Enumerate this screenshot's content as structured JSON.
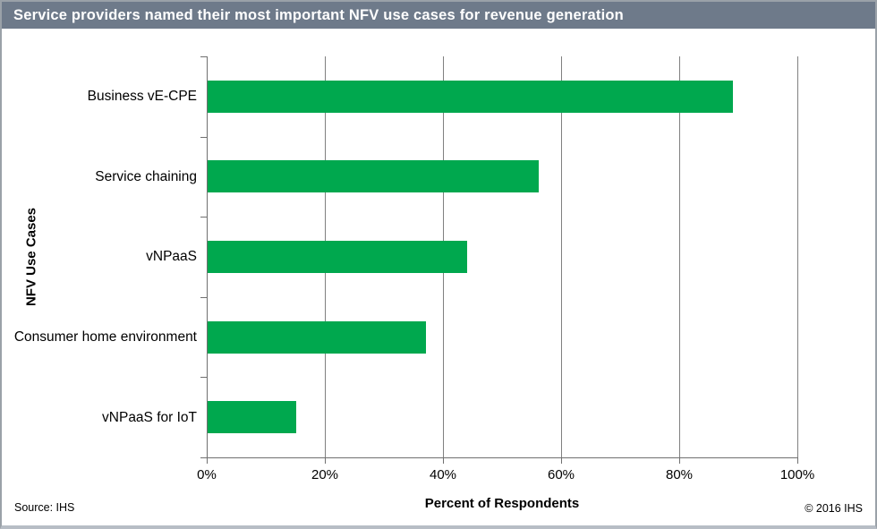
{
  "header": {
    "title": "Service providers named their most important NFV use cases for revenue generation",
    "bg_color": "#6e7a8a",
    "text_color": "#ffffff"
  },
  "chart_data": {
    "type": "bar",
    "orientation": "horizontal",
    "title": "Service providers named their most important NFV use cases for revenue generation",
    "categories": [
      "Business vE-CPE",
      "Service chaining",
      "vNPaaS",
      "Consumer home environment",
      "vNPaaS for IoT"
    ],
    "values": [
      89,
      56,
      44,
      37,
      15
    ],
    "xlabel": "Percent of Respondents",
    "ylabel": "NFV Use Cases",
    "xlim": [
      0,
      100
    ],
    "xticks": [
      0,
      20,
      40,
      60,
      80,
      100
    ],
    "xtick_suffix": "%",
    "bar_color": "#00a84e",
    "grid": "vertical-only",
    "legend": "none"
  },
  "footer": {
    "source": "Source: IHS",
    "copyright": "© 2016 IHS"
  }
}
